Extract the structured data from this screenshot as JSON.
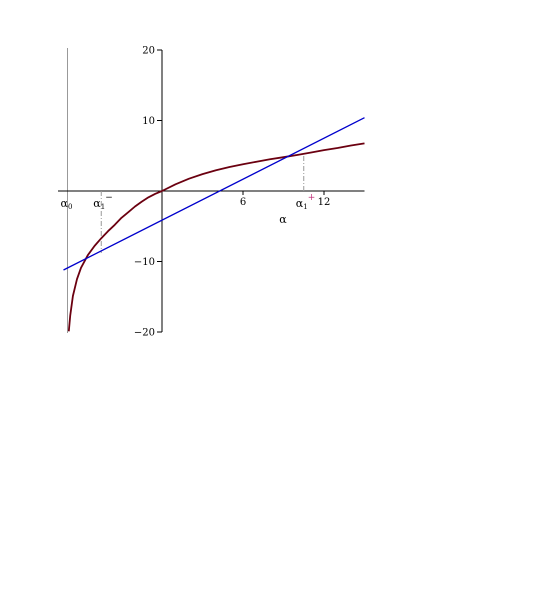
{
  "chart_data": {
    "type": "line",
    "title": "",
    "xlabel": "α",
    "ylabel": "",
    "xlim": [
      -7.3,
      15
    ],
    "ylim": [
      -20,
      20
    ],
    "x_ticks": [
      6,
      12
    ],
    "y_ticks": [
      -20,
      -10,
      10,
      20
    ],
    "grid": false,
    "legend": "none",
    "vertical_asymptote": {
      "x": -7,
      "label": "α",
      "subscript": "0",
      "color": "#999999"
    },
    "series": [
      {
        "id": "curve",
        "color": "#6b0010",
        "x": [
          -6.9,
          -6.8,
          -6.6,
          -6.3,
          -6.0,
          -5.5,
          -5.0,
          -4.5,
          -4.0,
          -3.5,
          -3.0,
          -2.5,
          -2.0,
          -1.5,
          -1.0,
          -0.5,
          0,
          1,
          2,
          3,
          4,
          5,
          6,
          7,
          8,
          9,
          10,
          11,
          12,
          13,
          14,
          15
        ],
        "y": [
          -19.9,
          -17.7,
          -14.9,
          -12.5,
          -10.9,
          -9.1,
          -7.8,
          -6.7,
          -5.7,
          -4.8,
          -3.8,
          -3.0,
          -2.2,
          -1.5,
          -0.9,
          -0.4,
          0,
          0.95,
          1.75,
          2.4,
          2.95,
          3.4,
          3.8,
          4.15,
          4.5,
          4.8,
          5.1,
          5.45,
          5.8,
          6.1,
          6.45,
          6.75
        ]
      },
      {
        "id": "line",
        "color": "#0000cc",
        "x": [
          -7.3,
          15
        ],
        "y": [
          -11.2,
          10.4
        ]
      }
    ],
    "markers": [
      {
        "x": -4.5,
        "y": -8.8,
        "label": "α",
        "subscript": "1",
        "superscript": "−"
      },
      {
        "x": 10.5,
        "y": 5.45,
        "label": "α",
        "subscript": "1",
        "superscript": "+"
      }
    ]
  }
}
